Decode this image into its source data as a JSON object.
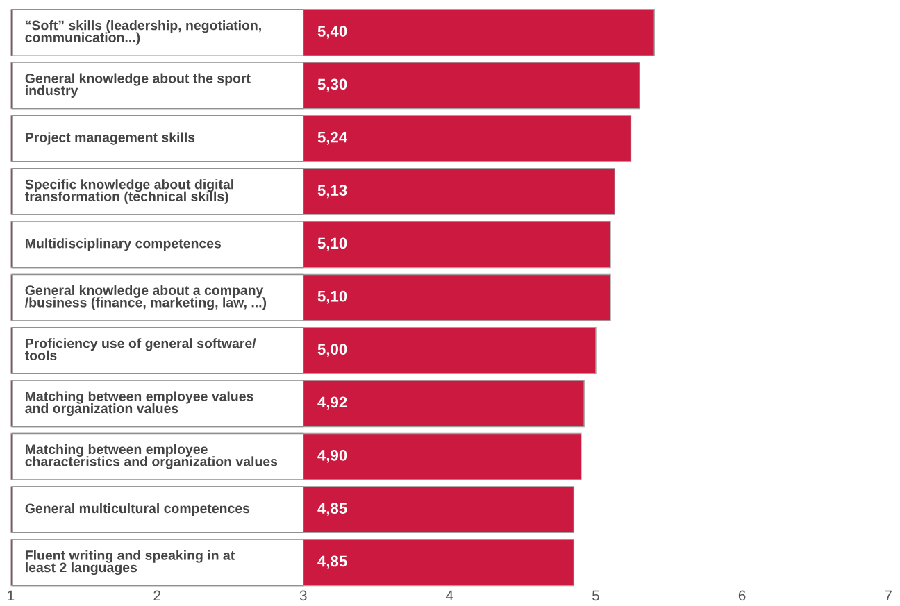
{
  "chart_data": {
    "type": "bar",
    "orientation": "horizontal",
    "categories": [
      "“Soft” skills (leadership, negotiation,\ncommunication...)",
      "General knowledge about the sport\nindustry",
      "Project management skills",
      "Specific knowledge about digital\ntransformation (technical skills)",
      "Multidisciplinary competences",
      "General knowledge about a company\n/business (finance, marketing, law, ...)",
      "Proficiency use of general software/\ntools",
      "Matching between employee values\nand organization values",
      "Matching between employee\ncharacteristics and organization values",
      "General multicultural competences",
      "Fluent writing and speaking in at\nleast 2 languages"
    ],
    "values": [
      5.4,
      5.3,
      5.24,
      5.13,
      5.1,
      5.1,
      5.0,
      4.92,
      4.9,
      4.85,
      4.85
    ],
    "value_labels": [
      "5,40",
      "5,30",
      "5,24",
      "5,13",
      "5,10",
      "5,10",
      "5,00",
      "4,92",
      "4,90",
      "4,85",
      "4,85"
    ],
    "color": "#cc1940",
    "xlim": [
      1,
      7
    ],
    "xticks": [
      1,
      2,
      3,
      4,
      5,
      6,
      7
    ],
    "grid": false,
    "legend": false
  }
}
